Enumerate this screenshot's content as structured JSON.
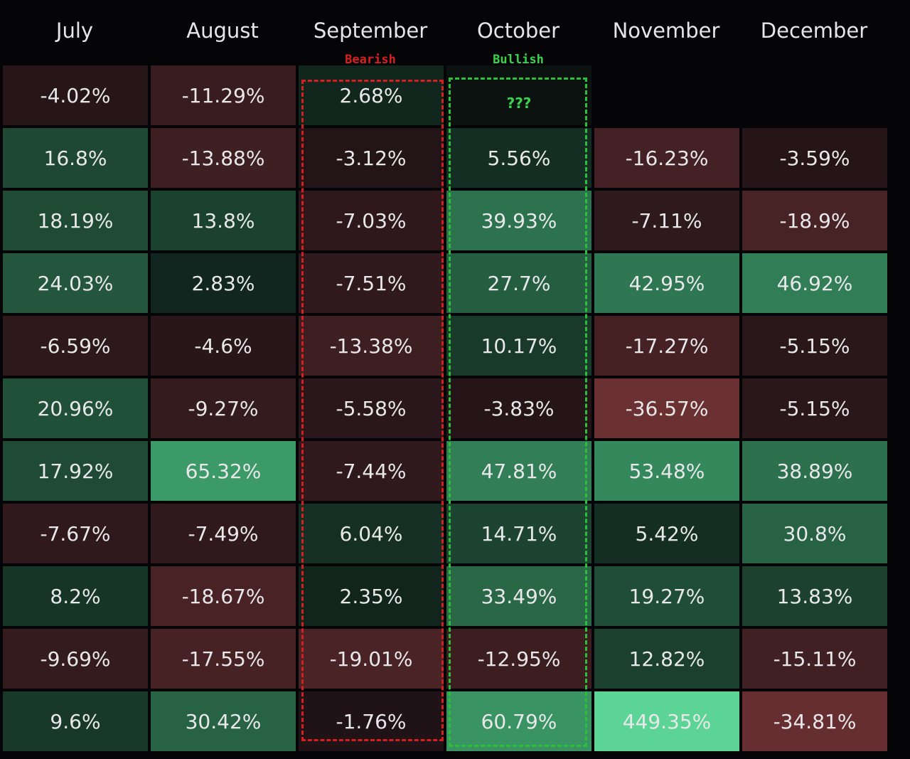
{
  "table": {
    "columns": [
      "July",
      "August",
      "September",
      "October",
      "November",
      "December"
    ],
    "column_notes": [
      null,
      null,
      "Bearish",
      "Bullish",
      null,
      null
    ],
    "rows": [
      [
        "-4.02%",
        "-11.29%",
        "2.68%",
        "???",
        null,
        null
      ],
      [
        "16.8%",
        "-13.88%",
        "-3.12%",
        "5.56%",
        "-16.23%",
        "-3.59%"
      ],
      [
        "18.19%",
        "13.8%",
        "-7.03%",
        "39.93%",
        "-7.11%",
        "-18.9%"
      ],
      [
        "24.03%",
        "2.83%",
        "-7.51%",
        "27.7%",
        "42.95%",
        "46.92%"
      ],
      [
        "-6.59%",
        "-4.6%",
        "-13.38%",
        "10.17%",
        "-17.27%",
        "-5.15%"
      ],
      [
        "20.96%",
        "-9.27%",
        "-5.58%",
        "-3.83%",
        "-36.57%",
        "-5.15%"
      ],
      [
        "17.92%",
        "65.32%",
        "-7.44%",
        "47.81%",
        "53.48%",
        "38.89%"
      ],
      [
        "-7.67%",
        "-7.49%",
        "6.04%",
        "14.71%",
        "5.42%",
        "30.8%"
      ],
      [
        "8.2%",
        "-18.67%",
        "2.35%",
        "33.49%",
        "19.27%",
        "13.83%"
      ],
      [
        "-9.69%",
        "-17.55%",
        "-19.01%",
        "-12.95%",
        "12.82%",
        "-15.11%"
      ],
      [
        "9.6%",
        "30.42%",
        "-1.76%",
        "60.79%",
        "449.35%",
        "-34.81%"
      ]
    ]
  }
}
